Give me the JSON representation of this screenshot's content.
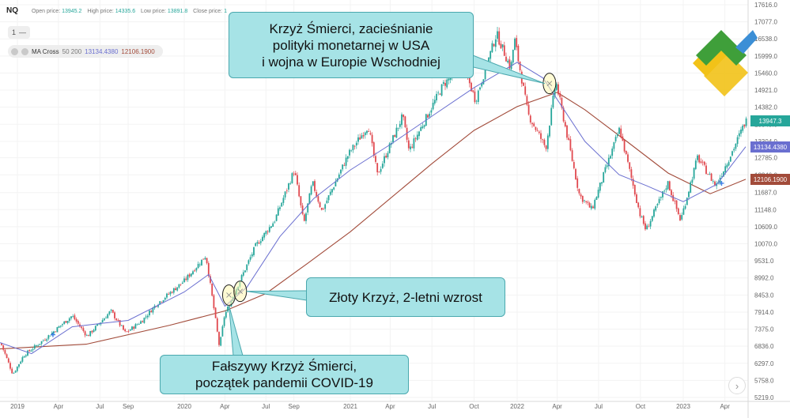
{
  "header": {
    "symbol": "NQ",
    "open_label": "Open price:",
    "open_value": "13945.2",
    "high_label": "High price:",
    "high_value": "14335.6",
    "low_label": "Low price:",
    "low_value": "13891.8",
    "close_label": "Close price:",
    "close_value": "1"
  },
  "toolbar": {
    "interval_label": "1",
    "interval_dash": "—"
  },
  "indicator": {
    "name": "MA Cross",
    "params": "50 200",
    "fast_value": "13134.4380",
    "slow_value": "12106.1900",
    "fast_color": "#6a6fd0",
    "slow_color": "#a24b3a"
  },
  "callouts": {
    "death_cross_2022": [
      "Krzyż Śmierci, zacieśnianie",
      "polityki monetarnej w USA",
      "i wojna w Europie Wschodniej"
    ],
    "golden_cross": [
      "Złoty Krzyż, 2-letni wzrost"
    ],
    "false_death_cross": [
      "Fałszywy Krzyż Śmierci,",
      "początek pandemii COVID-19"
    ]
  },
  "price_tags": {
    "last": {
      "text": "13947.3",
      "color": "#26a69a"
    },
    "fast_ma": {
      "text": "13134.4380",
      "color": "#6a6fd0"
    },
    "slow_ma": {
      "text": "12106.1900",
      "color": "#a24b3a"
    }
  },
  "chart_data": {
    "type": "candlestick",
    "y_ticks": [
      "17616.0",
      "17077.0",
      "16538.0",
      "15999.0",
      "15460.0",
      "14921.0",
      "14382.0",
      "13843.0",
      "13304.0",
      "12785.0",
      "12246.0",
      "11687.0",
      "11148.0",
      "10609.0",
      "10070.0",
      "9531.0",
      "8992.0",
      "8453.0",
      "7914.0",
      "7375.0",
      "6836.0",
      "6297.0",
      "5758.0",
      "5219.0"
    ],
    "x_ticks": [
      "2019",
      "Apr",
      "Jul",
      "Sep",
      "2020",
      "Apr",
      "Jul",
      "Sep",
      "2021",
      "Apr",
      "Jul",
      "Oct",
      "2022",
      "Apr",
      "Jul",
      "Oct",
      "2023",
      "Apr"
    ],
    "ylim": [
      5219,
      17616
    ],
    "price_path": [
      [
        "2018-12-01",
        7000
      ],
      [
        "2018-12-24",
        5950
      ],
      [
        "2019-01-15",
        6550
      ],
      [
        "2019-03-01",
        7050
      ],
      [
        "2019-05-01",
        7800
      ],
      [
        "2019-06-03",
        7150
      ],
      [
        "2019-07-25",
        7950
      ],
      [
        "2019-08-26",
        7250
      ],
      [
        "2019-10-02",
        7650
      ],
      [
        "2019-11-01",
        8150
      ],
      [
        "2020-01-02",
        8900
      ],
      [
        "2020-02-19",
        9700
      ],
      [
        "2020-03-10",
        7800
      ],
      [
        "2020-03-20",
        6800
      ],
      [
        "2020-03-31",
        7800
      ],
      [
        "2020-05-01",
        8800
      ],
      [
        "2020-06-08",
        10000
      ],
      [
        "2020-07-20",
        10800
      ],
      [
        "2020-09-02",
        12400
      ],
      [
        "2020-09-23",
        10700
      ],
      [
        "2020-10-12",
        12000
      ],
      [
        "2020-11-02",
        11100
      ],
      [
        "2020-12-31",
        12900
      ],
      [
        "2021-02-12",
        13800
      ],
      [
        "2021-03-04",
        12250
      ],
      [
        "2021-04-28",
        14100
      ],
      [
        "2021-05-12",
        13000
      ],
      [
        "2021-07-26",
        15100
      ],
      [
        "2021-09-07",
        15700
      ],
      [
        "2021-10-04",
        14600
      ],
      [
        "2021-11-19",
        16700
      ],
      [
        "2021-12-20",
        15600
      ],
      [
        "2021-12-28",
        16550
      ],
      [
        "2022-01-27",
        14150
      ],
      [
        "2022-03-07",
        13100
      ],
      [
        "2022-03-29",
        15200
      ],
      [
        "2022-05-20",
        11600
      ],
      [
        "2022-06-16",
        11150
      ],
      [
        "2022-08-16",
        13700
      ],
      [
        "2022-09-30",
        11000
      ],
      [
        "2022-10-13",
        10500
      ],
      [
        "2022-11-30",
        12000
      ],
      [
        "2022-12-28",
        10800
      ],
      [
        "2023-02-02",
        12800
      ],
      [
        "2023-03-13",
        11900
      ],
      [
        "2023-04-20",
        13100
      ],
      [
        "2023-05-15",
        13950
      ]
    ],
    "ma_fast_path": [
      [
        "2018-12-01",
        6950
      ],
      [
        "2019-02-01",
        6600
      ],
      [
        "2019-05-01",
        7450
      ],
      [
        "2019-07-01",
        7550
      ],
      [
        "2019-09-01",
        7650
      ],
      [
        "2020-01-02",
        8550
      ],
      [
        "2020-02-25",
        9100
      ],
      [
        "2020-04-01",
        8100
      ],
      [
        "2020-05-20",
        8700
      ],
      [
        "2020-08-01",
        10300
      ],
      [
        "2020-10-15",
        11500
      ],
      [
        "2021-01-04",
        12400
      ],
      [
        "2021-04-01",
        13200
      ],
      [
        "2021-07-01",
        14100
      ],
      [
        "2021-10-01",
        15000
      ],
      [
        "2022-01-03",
        15800
      ],
      [
        "2022-03-01",
        15300
      ],
      [
        "2022-06-01",
        13300
      ],
      [
        "2022-08-15",
        12250
      ],
      [
        "2022-10-15",
        11900
      ],
      [
        "2023-01-03",
        11400
      ],
      [
        "2023-03-15",
        11950
      ],
      [
        "2023-05-15",
        13134
      ]
    ],
    "ma_slow_path": [
      [
        "2018-12-01",
        6750
      ],
      [
        "2019-06-01",
        6900
      ],
      [
        "2019-12-01",
        7500
      ],
      [
        "2020-04-01",
        7950
      ],
      [
        "2020-07-01",
        8500
      ],
      [
        "2020-10-01",
        9450
      ],
      [
        "2021-01-04",
        10450
      ],
      [
        "2021-04-01",
        11500
      ],
      [
        "2021-07-01",
        12600
      ],
      [
        "2021-10-01",
        13650
      ],
      [
        "2022-01-03",
        14400
      ],
      [
        "2022-04-01",
        14850
      ],
      [
        "2022-06-01",
        14300
      ],
      [
        "2022-09-01",
        13300
      ],
      [
        "2022-12-01",
        12300
      ],
      [
        "2023-03-01",
        11650
      ],
      [
        "2023-05-15",
        12106
      ]
    ],
    "crosses": [
      {
        "type": "death",
        "date": "2020-04-10",
        "value": 8450
      },
      {
        "type": "golden",
        "date": "2020-05-05",
        "value": 8570
      },
      {
        "type": "death",
        "date": "2022-03-15",
        "value": 15130
      }
    ],
    "grid": true
  }
}
